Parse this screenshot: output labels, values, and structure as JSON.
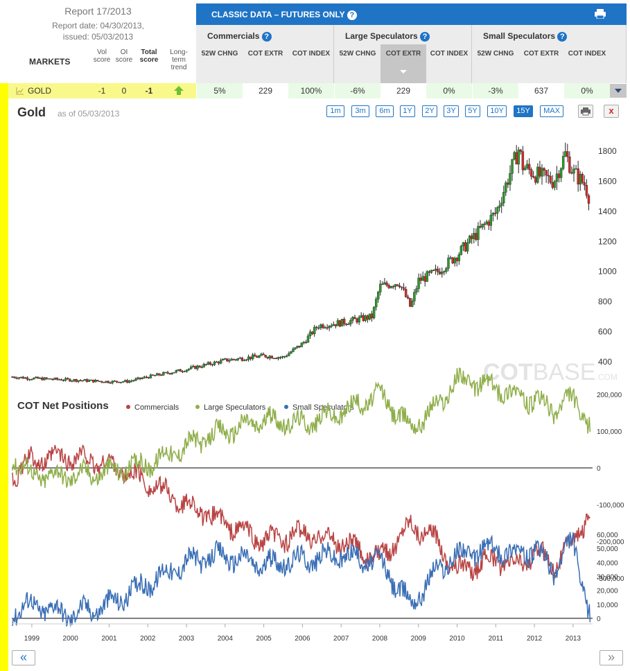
{
  "report": {
    "title": "Report 17/2013",
    "report_date": "Report date: 04/30/2013,",
    "issued": "issued: 05/03/2013"
  },
  "columns": {
    "markets": "MARKETS",
    "vol": "Vol score",
    "oi": "OI score",
    "total": "Total score",
    "trend": "Long-term trend"
  },
  "header": {
    "title": "CLASSIC DATA – FUTURES ONLY",
    "help": "?"
  },
  "groups": [
    {
      "title": "Commercials",
      "cols": [
        "52W CHNG",
        "COT EXTR",
        "COT INDEX"
      ],
      "values": [
        "5%",
        "229",
        "100%"
      ]
    },
    {
      "title": "Large Speculators",
      "cols": [
        "52W CHNG",
        "COT EXTR",
        "COT INDEX"
      ],
      "values": [
        "-6%",
        "229",
        "0%"
      ]
    },
    {
      "title": "Small Speculators",
      "cols": [
        "52W CHNG",
        "COT EXTR",
        "COT INDEX"
      ],
      "values": [
        "-3%",
        "637",
        "0%"
      ]
    }
  ],
  "market_row": {
    "name": "GOLD",
    "vol": "-1",
    "oi": "0",
    "total": "-1"
  },
  "chart": {
    "title": "Gold",
    "asof": "as of 05/03/2013",
    "watermark_a": "COT",
    "watermark_b": "BASE",
    "watermark_c": ".COM",
    "ranges": [
      "1m",
      "3m",
      "6m",
      "1Y",
      "2Y",
      "3Y",
      "5Y",
      "10Y",
      "15Y",
      "MAX"
    ],
    "active": "15Y",
    "close": "x"
  },
  "cot": {
    "title": "COT Net Positions",
    "legend": [
      "Commercials",
      "Large Speculators",
      "Small Speculators"
    ]
  },
  "colors": {
    "commercials": "#b94444",
    "large": "#8fae4a",
    "small": "#3a6eb5",
    "up": "#2a9a2a",
    "down": "#d42a2a",
    "accent": "#1f74c5"
  },
  "nav": {
    "prev": "«",
    "next": "»"
  },
  "chart_data": [
    {
      "type": "candlestick",
      "title": "Gold",
      "x": [
        1998.5,
        1999,
        2000,
        2001,
        2001.5,
        2002,
        2003,
        2004,
        2005,
        2005.5,
        2006,
        2006.4,
        2007,
        2007.8,
        2008,
        2008.5,
        2008.8,
        2009,
        2009.5,
        2010,
        2010.5,
        2011,
        2011.6,
        2011.7,
        2012,
        2012.5,
        2012.8,
        2013,
        2013.3,
        2013.45
      ],
      "values": [
        300,
        290,
        280,
        268,
        270,
        300,
        350,
        410,
        440,
        430,
        520,
        640,
        660,
        700,
        900,
        930,
        760,
        940,
        1000,
        1110,
        1250,
        1390,
        1820,
        1700,
        1650,
        1600,
        1780,
        1660,
        1580,
        1470
      ],
      "yticks": [
        400,
        600,
        800,
        1000,
        1200,
        1400,
        1600,
        1800
      ],
      "ylim": [
        280,
        1920
      ]
    },
    {
      "type": "line",
      "title": "COT Net Positions",
      "series": [
        {
          "name": "Commercials",
          "x": [
            1998.5,
            1999,
            2000,
            2001,
            2002,
            2003,
            2004,
            2005,
            2006,
            2007,
            2008,
            2008.8,
            2009.5,
            2010,
            2011,
            2011.5,
            2012,
            2012.5,
            2013,
            2013.45
          ],
          "values": [
            -20000,
            20000,
            30000,
            10000,
            -40000,
            -100000,
            -150000,
            -200000,
            -180000,
            -200000,
            -250000,
            -150000,
            -200000,
            -280000,
            -250000,
            -270000,
            -230000,
            -260000,
            -200000,
            -120000
          ]
        },
        {
          "name": "Large Speculators",
          "x": [
            1998.5,
            1999,
            2000,
            2001,
            2002,
            2003,
            2004,
            2005,
            2006,
            2007,
            2008,
            2008.8,
            2009.5,
            2010,
            2011,
            2011.5,
            2012,
            2012.5,
            2013,
            2013.45
          ],
          "values": [
            30000,
            -20000,
            -20000,
            -10000,
            10000,
            60000,
            100000,
            130000,
            120000,
            150000,
            200000,
            110000,
            170000,
            240000,
            220000,
            200000,
            180000,
            160000,
            190000,
            110000
          ]
        },
        {
          "name": "Small Speculators",
          "x": [
            1998.5,
            1999,
            2000,
            2001,
            2002,
            2003,
            2004,
            2005,
            2006,
            2007,
            2008,
            2008.8,
            2009.5,
            2010,
            2011,
            2011.5,
            2012,
            2012.5,
            2013,
            2013.45
          ],
          "values": [
            5000,
            10000,
            3000,
            10000,
            25000,
            40000,
            45000,
            38000,
            42000,
            45000,
            40000,
            10000,
            35000,
            45000,
            50000,
            46000,
            48000,
            35000,
            55000,
            0
          ]
        }
      ],
      "yticks_upper": [
        "200,000",
        "100,000",
        "0",
        "-100,000",
        "-200,000",
        "-300,000"
      ],
      "yticks_lower": [
        "60,000",
        "50,000",
        "40,000",
        "30,000",
        "20,000",
        "10,000",
        "0"
      ],
      "xticks": [
        "1999",
        "2000",
        "2001",
        "2002",
        "2003",
        "2004",
        "2005",
        "2006",
        "2007",
        "2008",
        "2009",
        "2010",
        "2011",
        "2012",
        "2013"
      ]
    }
  ]
}
